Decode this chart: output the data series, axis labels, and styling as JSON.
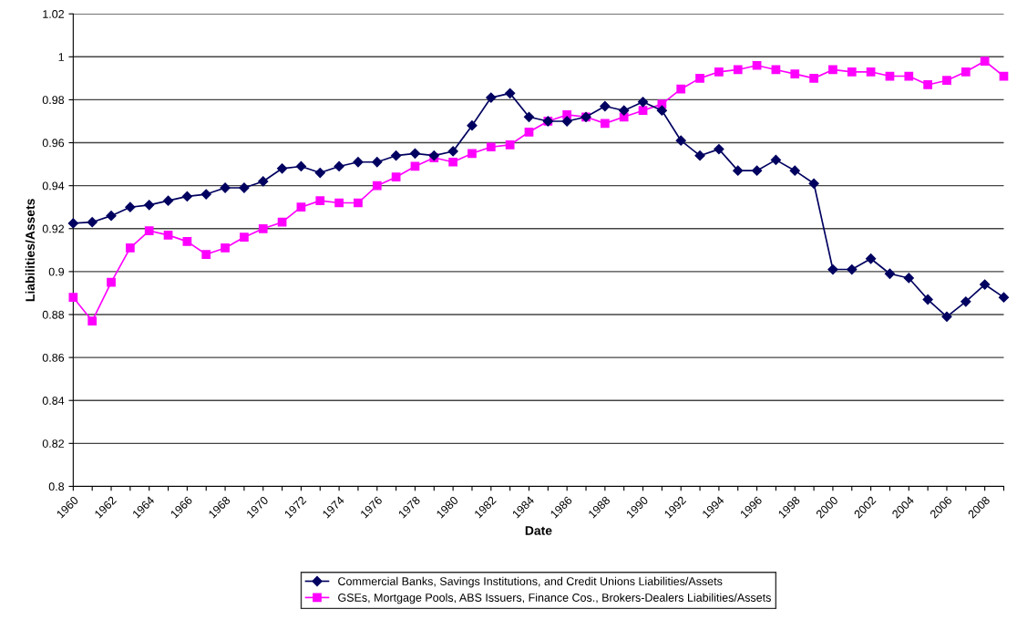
{
  "chart_data": {
    "type": "line",
    "xlabel": "Date",
    "ylabel": "Liabilities/Assets",
    "categories": [
      "1960",
      null,
      "1962",
      null,
      "1964",
      null,
      "1966",
      null,
      "1968",
      null,
      "1970",
      null,
      "1972",
      null,
      "1974",
      null,
      "1976",
      null,
      "1978",
      null,
      "1980",
      null,
      "1982",
      null,
      "1984",
      null,
      "1986",
      null,
      "1988",
      null,
      "1990",
      null,
      "1992",
      null,
      "1994",
      null,
      "1996",
      null,
      "1998",
      null,
      "2000",
      null,
      "2002",
      null,
      "2004",
      null,
      "2006",
      null,
      "2008",
      null
    ],
    "series": [
      {
        "name": "Commercial Banks, Savings Institutions, and Credit Unions Liabilities/Assets",
        "color": "#000060",
        "marker": "diamond",
        "values": [
          0.9225,
          0.923,
          0.926,
          0.93,
          0.931,
          0.933,
          0.935,
          0.936,
          0.939,
          0.939,
          0.942,
          0.948,
          0.949,
          0.946,
          0.949,
          0.951,
          0.951,
          0.954,
          0.955,
          0.954,
          0.956,
          0.968,
          0.981,
          0.983,
          0.972,
          0.97,
          0.97,
          0.972,
          0.977,
          0.975,
          0.979,
          0.975,
          0.961,
          0.954,
          0.957,
          0.947,
          0.947,
          0.952,
          0.947,
          0.941,
          0.901,
          0.901,
          0.906,
          0.899,
          0.897,
          0.887,
          0.879,
          0.886,
          0.894,
          0.888
        ]
      },
      {
        "name": "GSEs, Mortgage Pools, ABS Issuers, Finance Cos., Brokers-Dealers Liabilities/Assets",
        "color": "#ff00ff",
        "marker": "square",
        "values": [
          0.888,
          0.877,
          0.895,
          0.911,
          0.919,
          0.917,
          0.914,
          0.908,
          0.911,
          0.916,
          0.92,
          0.923,
          0.93,
          0.933,
          0.932,
          0.932,
          0.94,
          0.944,
          0.949,
          0.953,
          0.951,
          0.955,
          0.958,
          0.959,
          0.965,
          0.97,
          0.973,
          0.972,
          0.969,
          0.972,
          0.975,
          0.978,
          0.985,
          0.99,
          0.993,
          0.994,
          0.996,
          0.994,
          0.992,
          0.99,
          0.994,
          0.993,
          0.993,
          0.991,
          0.991,
          0.987,
          0.989,
          0.993,
          0.998,
          0.991
        ]
      }
    ],
    "ylim": [
      0.8,
      1.02
    ],
    "yticks": [
      0.8,
      0.82,
      0.84,
      0.86,
      0.88,
      0.9,
      0.92,
      0.94,
      0.96,
      0.98,
      1,
      1.02
    ],
    "grid": "y",
    "legend": "bottom"
  }
}
